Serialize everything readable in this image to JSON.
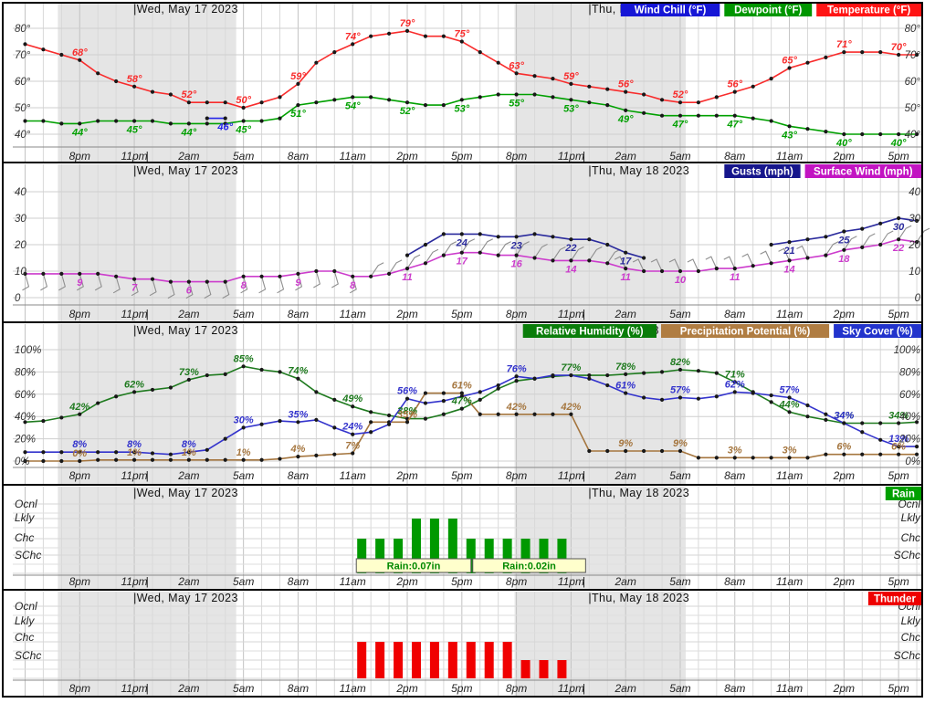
{
  "timeline": {
    "note_hours_axis": "hours relative to midnight starting Wed May 17 2023",
    "tick_hours": [
      -4,
      -1,
      2,
      5,
      8,
      11,
      14,
      17,
      20,
      23,
      26,
      29,
      32,
      35,
      38,
      41
    ],
    "tick_labels": [
      "8pm",
      "11pm",
      "2am",
      "5am",
      "8am",
      "11am",
      "2pm",
      "5pm",
      "8pm",
      "11pm",
      "2am",
      "5am",
      "8am",
      "11am",
      "2pm",
      "5pm"
    ],
    "midnight_pipe_hours": [
      0,
      24
    ],
    "night_bands": [
      [
        -5.2,
        4.6
      ],
      [
        19.9,
        29.3
      ]
    ],
    "night_band_color": "#e5e5e5",
    "day_headers": [
      {
        "label": "|Wed, May 17 2023",
        "hour": -1.05
      },
      {
        "label": "|Thu, May 18 2023",
        "hour": 23.95
      }
    ]
  },
  "chart_data": [
    {
      "id": "temperature",
      "type": "line",
      "y_axis": {
        "ticks": [
          40,
          50,
          60,
          70,
          80
        ],
        "suffix": "°"
      },
      "legend": [
        {
          "label": "Wind Chill (°F)",
          "color": "#1616d6"
        },
        {
          "label": "Dewpoint (°F)",
          "color": "#009600"
        },
        {
          "label": "Temperature (°F)",
          "color": "#ff1414"
        }
      ],
      "series": [
        {
          "name": "Temperature",
          "color": "#f82c2c",
          "start_hour": -7,
          "step": 1,
          "label_side": "above",
          "label_suffix": "°",
          "values": [
            74,
            72,
            70,
            68,
            63,
            60,
            58,
            56,
            55,
            52,
            52,
            52,
            50,
            52,
            54,
            59,
            67,
            71,
            74,
            77,
            78,
            79,
            77,
            77,
            75,
            71,
            67,
            63,
            62,
            61,
            59,
            58,
            57,
            56,
            55,
            53,
            52,
            52,
            54,
            56,
            58,
            61,
            65,
            67,
            69,
            71,
            71,
            71,
            70,
            70
          ],
          "labels": [
            [
              -4,
              68
            ],
            [
              -1,
              58
            ],
            [
              2,
              52
            ],
            [
              5,
              50
            ],
            [
              8,
              59
            ],
            [
              11,
              74
            ],
            [
              14,
              79
            ],
            [
              17,
              75
            ],
            [
              20,
              63
            ],
            [
              23,
              59
            ],
            [
              26,
              56
            ],
            [
              29,
              52
            ],
            [
              32,
              56
            ],
            [
              35,
              65
            ],
            [
              38,
              71
            ],
            [
              41,
              70
            ]
          ]
        },
        {
          "name": "Dewpoint",
          "color": "#00a000",
          "start_hour": -7,
          "step": 1,
          "label_side": "below",
          "label_suffix": "°",
          "values": [
            45,
            45,
            44,
            44,
            45,
            45,
            45,
            45,
            44,
            44,
            44,
            44,
            45,
            45,
            46,
            51,
            52,
            53,
            54,
            54,
            53,
            52,
            51,
            51,
            53,
            54,
            55,
            55,
            55,
            54,
            53,
            52,
            51,
            49,
            48,
            47,
            47,
            47,
            47,
            47,
            46,
            45,
            43,
            42,
            41,
            40,
            40,
            40,
            40,
            40
          ],
          "labels": [
            [
              -4,
              44
            ],
            [
              -1,
              45
            ],
            [
              2,
              44
            ],
            [
              5,
              45
            ],
            [
              8,
              51
            ],
            [
              11,
              54
            ],
            [
              14,
              52
            ],
            [
              17,
              53
            ],
            [
              20,
              55
            ],
            [
              23,
              53
            ],
            [
              26,
              49
            ],
            [
              29,
              47
            ],
            [
              32,
              47
            ],
            [
              35,
              43
            ],
            [
              38,
              40
            ],
            [
              41,
              40
            ]
          ]
        },
        {
          "name": "Wind Chill",
          "color": "#2424e8",
          "start_hour": -7,
          "step": 1,
          "label_side": "below",
          "label_suffix": "°",
          "values": [
            null,
            null,
            null,
            null,
            null,
            null,
            null,
            null,
            null,
            null,
            46,
            46,
            null,
            null,
            null,
            null,
            null,
            null,
            null,
            null,
            null,
            null,
            null,
            null,
            null,
            null,
            null,
            null,
            null,
            null,
            null,
            null,
            null,
            null,
            null,
            null,
            null,
            null,
            null,
            null,
            null,
            null,
            null,
            null,
            null,
            null,
            null,
            null,
            null,
            null
          ],
          "labels": [
            [
              4,
              46
            ]
          ]
        }
      ]
    },
    {
      "id": "wind",
      "type": "line",
      "y_axis": {
        "ticks": [
          0,
          10,
          20,
          30,
          40
        ],
        "suffix": ""
      },
      "legend": [
        {
          "label": "Gusts (mph)",
          "color": "#16168c"
        },
        {
          "label": "Surface Wind (mph)",
          "color": "#c214c2"
        }
      ],
      "series": [
        {
          "name": "Gusts",
          "color": "#2a2a9c",
          "start_hour": -7,
          "step": 1,
          "label_side": "below",
          "label_suffix": "",
          "values": [
            null,
            null,
            null,
            null,
            null,
            null,
            null,
            null,
            null,
            null,
            null,
            null,
            null,
            null,
            null,
            null,
            null,
            null,
            null,
            null,
            null,
            16,
            20,
            24,
            24,
            24,
            23,
            23,
            24,
            23,
            22,
            22,
            20,
            17,
            15,
            null,
            null,
            null,
            null,
            null,
            null,
            20,
            21,
            22,
            23,
            25,
            26,
            28,
            30,
            29
          ],
          "labels": [
            [
              17,
              24
            ],
            [
              20,
              23
            ],
            [
              23,
              22
            ],
            [
              26,
              17
            ],
            [
              35,
              21
            ],
            [
              38,
              25
            ],
            [
              41,
              30
            ]
          ]
        },
        {
          "name": "Surface Wind",
          "color": "#cc3ccc",
          "start_hour": -7,
          "step": 1,
          "label_side": "below",
          "label_suffix": "",
          "barbs": true,
          "values": [
            9,
            9,
            9,
            9,
            9,
            8,
            7,
            7,
            6,
            6,
            6,
            6,
            8,
            8,
            8,
            9,
            10,
            10,
            8,
            8,
            9,
            11,
            13,
            16,
            17,
            17,
            16,
            16,
            15,
            14,
            14,
            14,
            13,
            11,
            10,
            10,
            10,
            10,
            11,
            11,
            12,
            13,
            14,
            15,
            16,
            18,
            19,
            20,
            22,
            21
          ],
          "labels": [
            [
              -4,
              9
            ],
            [
              -1,
              7
            ],
            [
              2,
              6
            ],
            [
              5,
              8
            ],
            [
              8,
              9
            ],
            [
              11,
              8
            ],
            [
              14,
              11
            ],
            [
              17,
              17
            ],
            [
              20,
              16
            ],
            [
              23,
              14
            ],
            [
              26,
              11
            ],
            [
              29,
              10
            ],
            [
              32,
              11
            ],
            [
              35,
              14
            ],
            [
              38,
              18
            ],
            [
              41,
              22
            ]
          ]
        }
      ]
    },
    {
      "id": "humidity",
      "type": "line",
      "y_axis": {
        "ticks": [
          0,
          20,
          40,
          60,
          80,
          100
        ],
        "suffix": "%"
      },
      "legend": [
        {
          "label": "Relative Humidity (%)",
          "color": "#0a7d0a"
        },
        {
          "label": "Precipitation Potential (%)",
          "color": "#b07d42"
        },
        {
          "label": "Sky Cover (%)",
          "color": "#2233cc"
        }
      ],
      "series": [
        {
          "name": "Relative Humidity",
          "color": "#1f7a1f",
          "start_hour": -7,
          "step": 1,
          "label_side": "above",
          "label_suffix": "%",
          "values": [
            35,
            36,
            39,
            42,
            52,
            58,
            62,
            64,
            66,
            73,
            77,
            78,
            85,
            82,
            80,
            74,
            62,
            55,
            49,
            44,
            41,
            38,
            38,
            42,
            47,
            55,
            65,
            72,
            74,
            76,
            77,
            77,
            77,
            78,
            79,
            80,
            82,
            81,
            79,
            71,
            62,
            53,
            44,
            40,
            37,
            34,
            34,
            34,
            34,
            35
          ],
          "labels": [
            [
              -4,
              42
            ],
            [
              -1,
              62
            ],
            [
              2,
              73
            ],
            [
              5,
              85
            ],
            [
              8,
              74
            ],
            [
              11,
              49
            ],
            [
              14,
              38
            ],
            [
              17,
              47
            ],
            [
              23,
              77
            ],
            [
              26,
              78
            ],
            [
              29,
              82
            ],
            [
              32,
              71
            ],
            [
              35,
              44
            ],
            [
              38,
              34
            ],
            [
              41,
              34
            ]
          ]
        },
        {
          "name": "Precipitation Potential",
          "color": "#a5763f",
          "start_hour": -7,
          "step": 1,
          "label_side": "above",
          "label_suffix": "%",
          "values": [
            0,
            0,
            0,
            0,
            1,
            1,
            1,
            1,
            1,
            1,
            1,
            1,
            1,
            1,
            2,
            4,
            5,
            6,
            7,
            35,
            35,
            35,
            61,
            61,
            61,
            42,
            42,
            42,
            42,
            42,
            42,
            9,
            9,
            9,
            9,
            9,
            9,
            3,
            3,
            3,
            3,
            3,
            3,
            3,
            6,
            6,
            6,
            6,
            6,
            6
          ],
          "labels": [
            [
              -4,
              0
            ],
            [
              -1,
              1
            ],
            [
              2,
              1
            ],
            [
              5,
              1
            ],
            [
              8,
              4
            ],
            [
              11,
              7
            ],
            [
              14,
              35
            ],
            [
              17,
              61
            ],
            [
              20,
              42
            ],
            [
              23,
              42
            ],
            [
              26,
              9
            ],
            [
              29,
              9
            ],
            [
              32,
              3
            ],
            [
              35,
              3
            ],
            [
              38,
              6
            ],
            [
              41,
              6
            ]
          ]
        },
        {
          "name": "Sky Cover",
          "color": "#3333cc",
          "start_hour": -7,
          "step": 1,
          "label_side": "above",
          "label_suffix": "%",
          "values": [
            8,
            8,
            8,
            8,
            8,
            8,
            8,
            7,
            6,
            8,
            10,
            20,
            30,
            33,
            36,
            35,
            37,
            30,
            24,
            26,
            33,
            56,
            52,
            54,
            58,
            62,
            68,
            76,
            74,
            77,
            77,
            74,
            68,
            61,
            57,
            55,
            57,
            56,
            58,
            62,
            61,
            59,
            57,
            50,
            42,
            34,
            26,
            19,
            13,
            13
          ],
          "labels": [
            [
              -4,
              8
            ],
            [
              -1,
              8
            ],
            [
              2,
              8
            ],
            [
              5,
              30
            ],
            [
              8,
              35
            ],
            [
              11,
              24
            ],
            [
              14,
              56
            ],
            [
              20,
              76
            ],
            [
              26,
              61
            ],
            [
              29,
              57
            ],
            [
              32,
              62
            ],
            [
              35,
              57
            ],
            [
              38,
              34
            ],
            [
              41,
              13
            ]
          ]
        }
      ]
    },
    {
      "id": "rain",
      "type": "category",
      "categories": [
        "Ocnl",
        "Lkly",
        "Chc",
        "SChc"
      ],
      "legend": [
        {
          "label": "Rain",
          "color": "#00a000"
        }
      ],
      "bar_color": "#009900",
      "bars": [
        [
          11.5,
          "Chc"
        ],
        [
          12.5,
          "Chc"
        ],
        [
          13.5,
          "Chc"
        ],
        [
          14.5,
          "Lkly"
        ],
        [
          15.5,
          "Lkly"
        ],
        [
          16.5,
          "Lkly"
        ],
        [
          17.5,
          "Chc"
        ],
        [
          18.5,
          "Chc"
        ],
        [
          19.5,
          "Chc"
        ],
        [
          20.5,
          "Chc"
        ],
        [
          21.5,
          "Chc"
        ],
        [
          22.5,
          "Chc"
        ]
      ],
      "annotations": [
        {
          "text": "Rain:0.07in",
          "from": 11.2,
          "to": 17.5,
          "text_color": "#008800",
          "bg": "#ffffcc"
        },
        {
          "text": "Rain:0.02in",
          "from": 17.6,
          "to": 23.8,
          "text_color": "#008800",
          "bg": "#ffffcc"
        }
      ]
    },
    {
      "id": "thunder",
      "type": "category",
      "categories": [
        "Ocnl",
        "Lkly",
        "Chc",
        "SChc"
      ],
      "legend": [
        {
          "label": "Thunder",
          "color": "#ee0000"
        }
      ],
      "bar_color": "#f00000",
      "bars": [
        [
          11.5,
          "Chc"
        ],
        [
          12.5,
          "Chc"
        ],
        [
          13.5,
          "Chc"
        ],
        [
          14.5,
          "Chc"
        ],
        [
          15.5,
          "Chc"
        ],
        [
          16.5,
          "Chc"
        ],
        [
          17.5,
          "Chc"
        ],
        [
          18.5,
          "Chc"
        ],
        [
          19.5,
          "Chc"
        ],
        [
          20.5,
          "SChc"
        ],
        [
          21.5,
          "SChc"
        ],
        [
          22.5,
          "SChc"
        ]
      ],
      "annotations": []
    }
  ]
}
